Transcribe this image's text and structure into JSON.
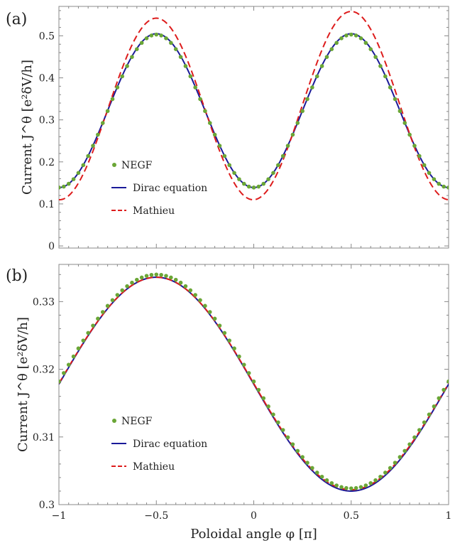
{
  "chart_data": [
    {
      "type": "line",
      "panel_label": "(a)",
      "ylabel": "Current J^θ [e²δV/h]",
      "ylim": [
        -0.005,
        0.57
      ],
      "yticks": [
        0,
        0.1,
        0.2,
        0.3,
        0.4,
        0.5
      ],
      "ytick_labels": [
        "0",
        "0.1",
        "0.2",
        "0.3",
        "0.4",
        "0.5"
      ],
      "xlim": [
        -1,
        1
      ],
      "grid": false,
      "legend_placement": "center-left",
      "series": [
        {
          "name": "NEGF",
          "style": "dots",
          "color": "#6aa636",
          "model": {
            "mean": 0.321,
            "amp": -0.182,
            "freq": 2,
            "phase": 0
          }
        },
        {
          "name": "Dirac equation",
          "style": "solid",
          "color": "#1a1a99",
          "model": {
            "mean": 0.322,
            "amp": -0.183,
            "freq": 2,
            "phase": 0
          }
        },
        {
          "name": "Mathieu",
          "style": "dashed",
          "color": "#dd1c1c",
          "model": {
            "mean": 0.33,
            "amp": -0.22,
            "freq": 2,
            "phase": 0,
            "asym": 0.008
          }
        }
      ]
    },
    {
      "type": "line",
      "panel_label": "(b)",
      "xlabel": "Poloidal angle φ [π]",
      "ylabel": "Current J^θ [e²δV/h]",
      "xlim": [
        -1,
        1
      ],
      "ylim": [
        0.3,
        0.3355
      ],
      "xticks": [
        -1,
        -0.5,
        0,
        0.5,
        1
      ],
      "xtick_labels": [
        "−1",
        "−0.5",
        "0",
        "0.5",
        "1"
      ],
      "yticks": [
        0.3,
        0.31,
        0.32,
        0.33
      ],
      "ytick_labels": [
        "0.3",
        "0.31",
        "0.32",
        "0.33"
      ],
      "grid": false,
      "legend_placement": "center-left",
      "series": [
        {
          "name": "NEGF",
          "style": "dots",
          "color": "#6aa636",
          "model": {
            "mean": 0.3182,
            "amp": 0.0158,
            "freq": 1,
            "phase": 0
          }
        },
        {
          "name": "Dirac equation",
          "style": "solid",
          "color": "#1a1a99",
          "model": {
            "mean": 0.3178,
            "amp": 0.0158,
            "freq": 1,
            "phase": 0
          }
        },
        {
          "name": "Mathieu",
          "style": "dashed",
          "color": "#dd1c1c",
          "model": {
            "mean": 0.3179,
            "amp": 0.0157,
            "freq": 1,
            "phase": 0
          }
        }
      ]
    }
  ]
}
